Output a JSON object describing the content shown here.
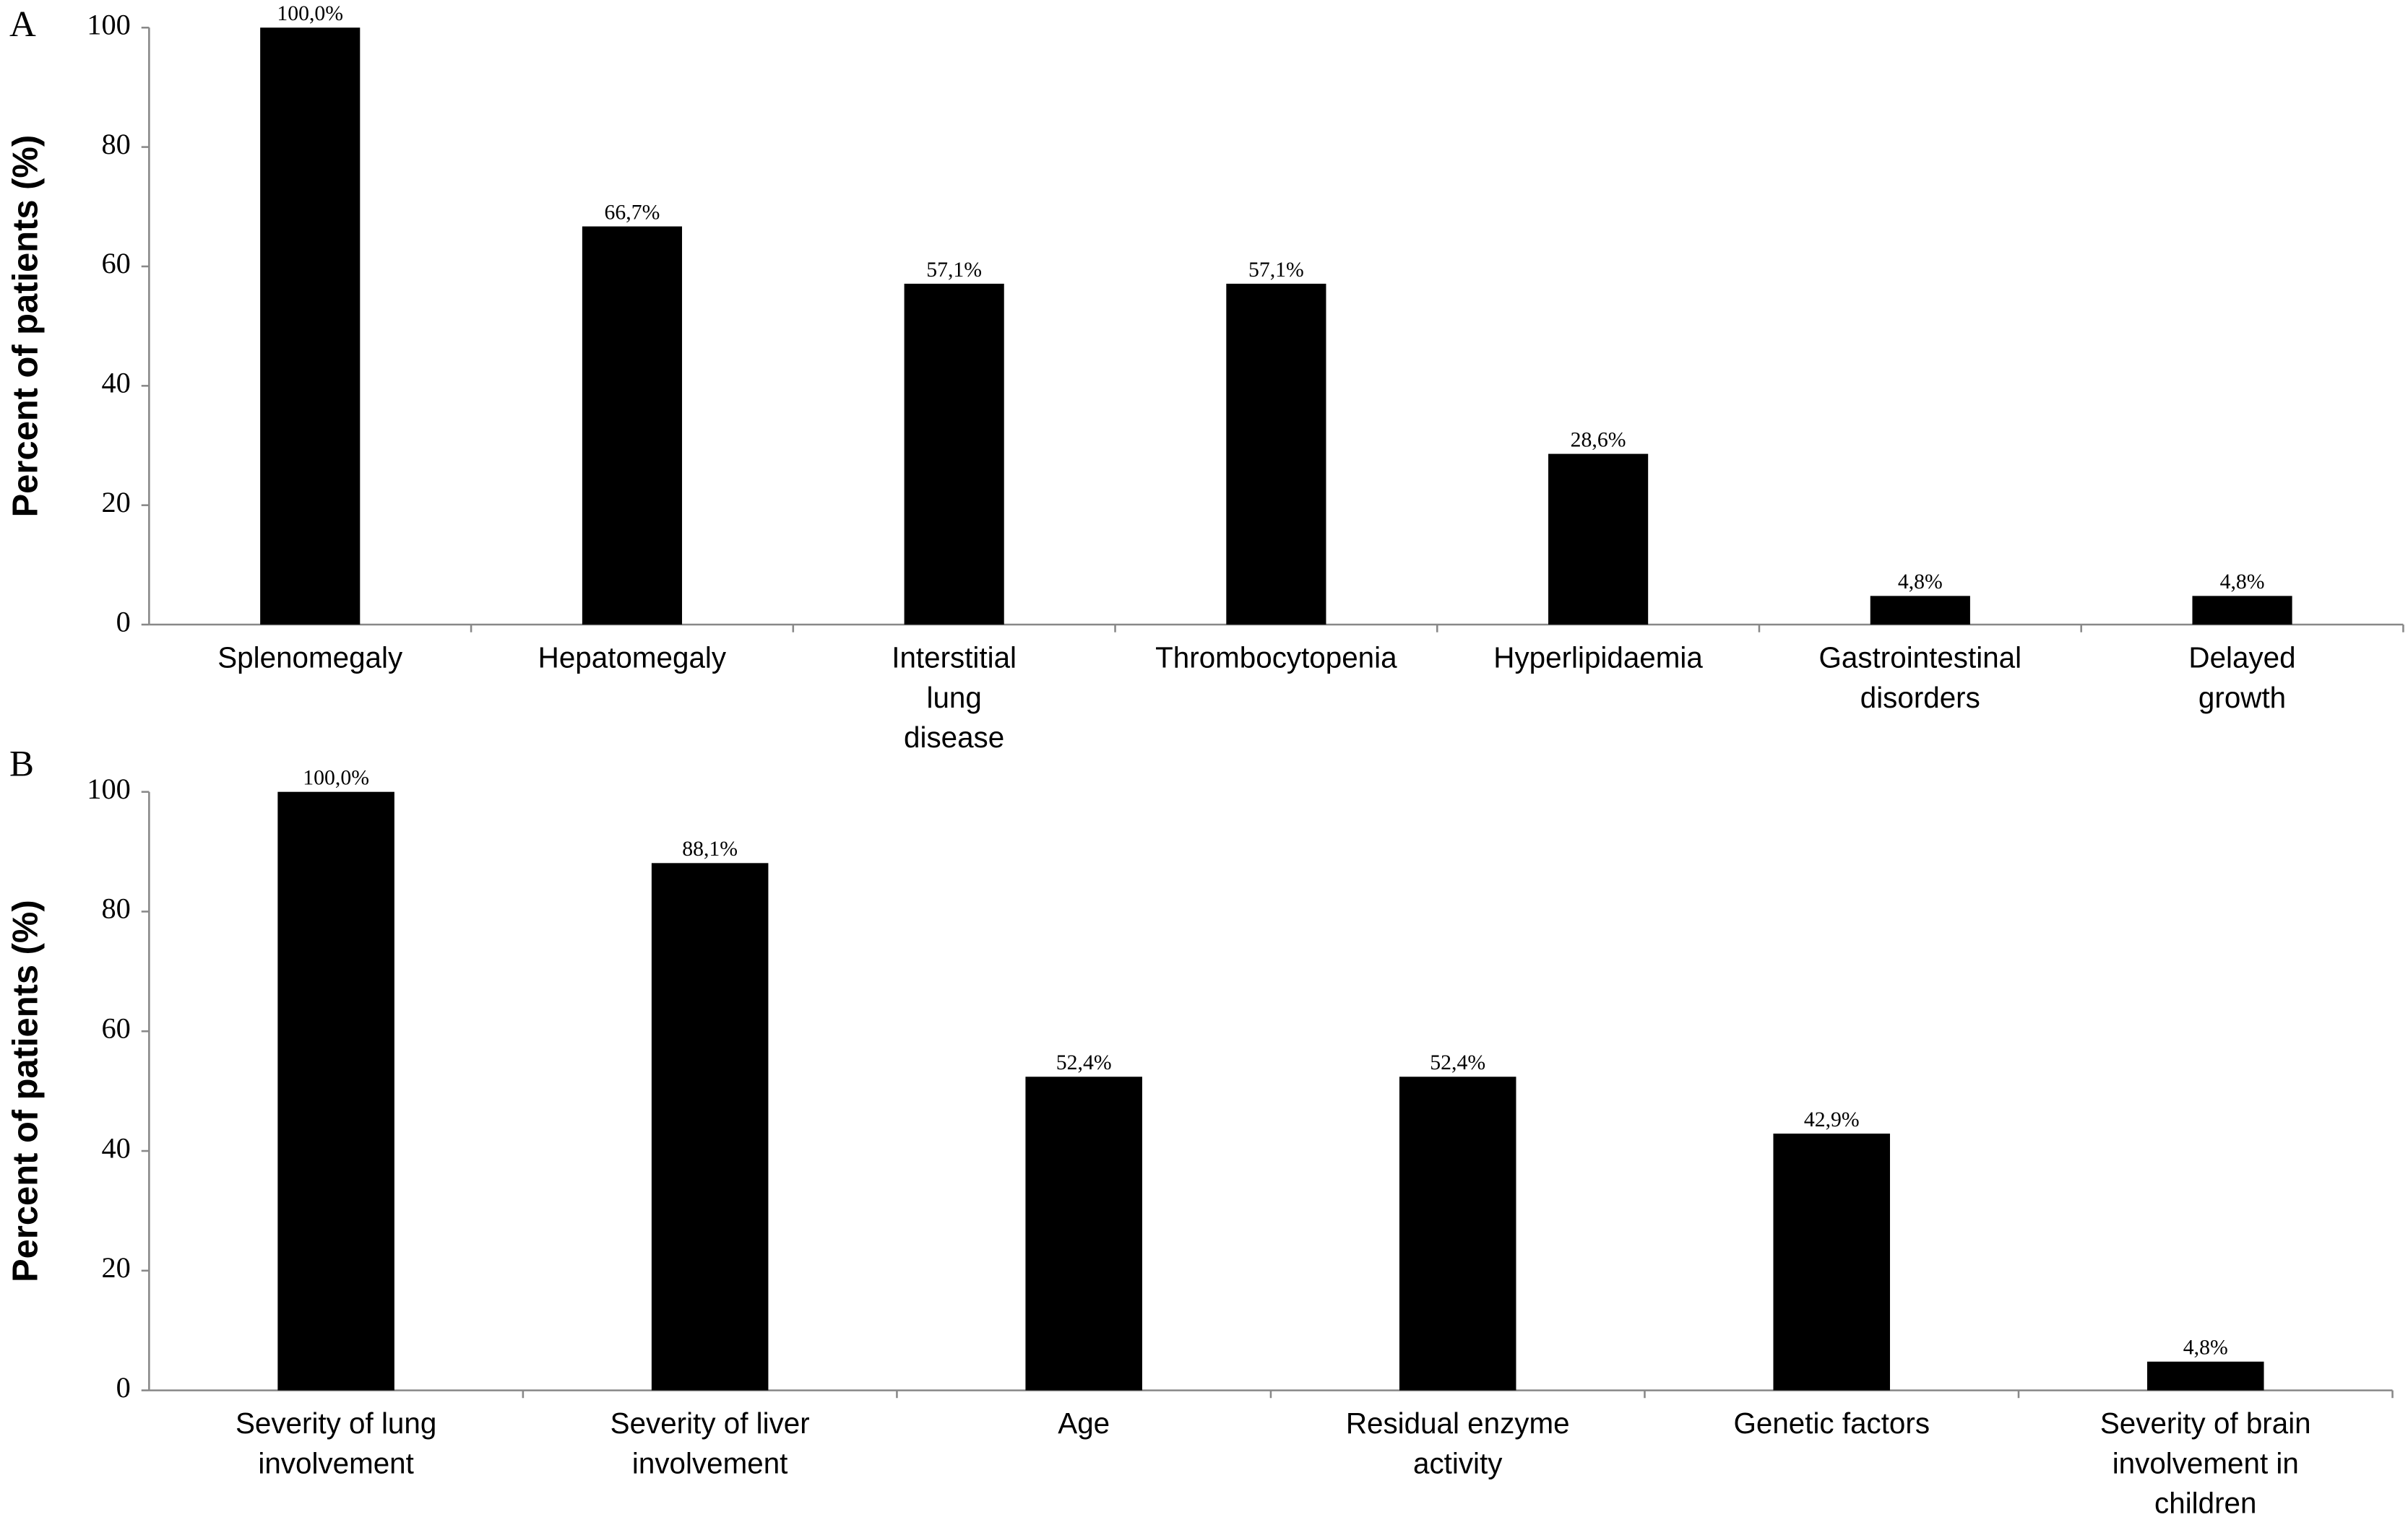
{
  "chart_data": [
    {
      "type": "bar",
      "panel_label": "A",
      "ylabel": "Percent of patients (%)",
      "categories": [
        "Splenomegaly",
        "Hepatomegaly",
        "Interstitial\nlung\ndisease",
        "Thrombocytopenia",
        "Hyperlipidaemia",
        "Gastrointestinal\ndisorders",
        "Delayed\ngrowth"
      ],
      "values": [
        100,
        66.7,
        57.1,
        57.1,
        28.6,
        4.8,
        4.8
      ],
      "value_labels": [
        "100,0%",
        "66,7%",
        "57,1%",
        "57,1%",
        "28,6%",
        "4,8%",
        "4,8%"
      ],
      "color": "#000000",
      "ylim": [
        0,
        100
      ],
      "yticks": [
        0,
        20,
        40,
        60,
        80,
        100
      ]
    },
    {
      "type": "bar",
      "panel_label": "B",
      "ylabel": "Percent of patients (%)",
      "categories": [
        "Severity of lung\ninvolvement",
        "Severity of liver\ninvolvement",
        "Age",
        "Residual enzyme\nactivity",
        "Genetic factors",
        "Severity of brain\ninvolvement in\nchildren"
      ],
      "values": [
        100,
        88.1,
        52.4,
        52.4,
        42.9,
        4.8
      ],
      "value_labels": [
        "100,0%",
        "88,1%",
        "52,4%",
        "52,4%",
        "42,9%",
        "4,8%"
      ],
      "color": "#000000",
      "ylim": [
        0,
        100
      ],
      "yticks": [
        0,
        20,
        40,
        60,
        80,
        100
      ]
    }
  ]
}
